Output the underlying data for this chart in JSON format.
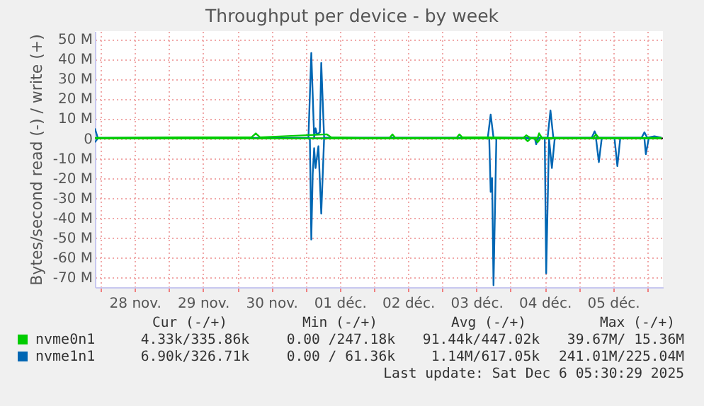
{
  "chart_data": {
    "type": "line",
    "title": "Throughput per device - by week",
    "ylabel": "Bytes/second read (-) / write (+)",
    "xlim": [
      "2025-11-27T22:00",
      "2025-12-06T05:30"
    ],
    "xticks": [
      {
        "value": "2025-11-28T00:00",
        "label": null
      },
      {
        "value": "2025-11-28T12:00",
        "label": "28 nov."
      },
      {
        "value": "2025-11-29T00:00",
        "label": null
      },
      {
        "value": "2025-11-29T12:00",
        "label": "29 nov."
      },
      {
        "value": "2025-11-30T00:00",
        "label": null
      },
      {
        "value": "2025-11-30T12:00",
        "label": "30 nov."
      },
      {
        "value": "2025-12-01T00:00",
        "label": null
      },
      {
        "value": "2025-12-01T12:00",
        "label": "01 déc."
      },
      {
        "value": "2025-12-02T00:00",
        "label": null
      },
      {
        "value": "2025-12-02T12:00",
        "label": "02 déc."
      },
      {
        "value": "2025-12-03T00:00",
        "label": null
      },
      {
        "value": "2025-12-03T12:00",
        "label": "03 déc."
      },
      {
        "value": "2025-12-04T00:00",
        "label": null
      },
      {
        "value": "2025-12-04T12:00",
        "label": "04 déc."
      },
      {
        "value": "2025-12-05T00:00",
        "label": null
      },
      {
        "value": "2025-12-05T12:00",
        "label": "05 déc."
      },
      {
        "value": "2025-12-06T00:00",
        "label": null
      }
    ],
    "ylim": [
      -75,
      54
    ],
    "yticks": [
      {
        "value": 50,
        "label": "50 M"
      },
      {
        "value": 40,
        "label": "40 M"
      },
      {
        "value": 30,
        "label": "30 M"
      },
      {
        "value": 20,
        "label": "20 M"
      },
      {
        "value": 10,
        "label": "10 M"
      },
      0,
      {
        "value": -10,
        "label": "-10 M"
      },
      {
        "value": -20,
        "label": "-20 M"
      },
      {
        "value": -30,
        "label": "-30 M"
      },
      {
        "value": -40,
        "label": "-40 M"
      },
      {
        "value": -50,
        "label": "-50 M"
      },
      {
        "value": -60,
        "label": "-60 M"
      },
      {
        "value": -70,
        "label": "-70 M"
      }
    ],
    "grid": true,
    "legend": "bottom left",
    "ref_lines": [
      {
        "axis": "y",
        "value": 0,
        "color": "#000000"
      }
    ],
    "series": [
      {
        "name": "nvme0n1",
        "color": "#00cc00",
        "x": [
          "2025-11-27T22:00",
          "2025-11-29T12:00",
          "2025-11-30T05:00",
          "2025-11-30T06:30",
          "2025-11-30T08:00",
          "2025-12-01T07:30",
          "2025-12-01T09:00",
          "2025-12-01T20:00",
          "2025-12-02T05:30",
          "2025-12-02T06:30",
          "2025-12-02T07:30",
          "2025-12-03T05:00",
          "2025-12-03T06:00",
          "2025-12-03T07:00",
          "2025-12-03T15:00",
          "2025-12-04T04:30",
          "2025-12-04T05:30",
          "2025-12-04T07:00",
          "2025-12-04T09:30",
          "2025-12-04T10:00",
          "2025-12-04T11:00",
          "2025-12-05T05:00",
          "2025-12-05T06:00",
          "2025-12-05T07:00",
          "2025-12-06T05:00"
        ],
        "values": [
          0.2,
          0.5,
          0.5,
          2.5,
          0.5,
          2,
          0.5,
          0.2,
          0.2,
          2,
          0.2,
          0.2,
          2,
          0.5,
          0.5,
          0.2,
          1.5,
          0.2,
          0.2,
          2.5,
          0.2,
          0.2,
          2,
          0.2,
          0.2
        ]
      },
      {
        "color": "#00cc00",
        "x": [
          "2025-11-27T22:00",
          "2025-12-04T05:00",
          "2025-12-04T06:00",
          "2025-12-04T07:00",
          "2025-12-04T08:30",
          "2025-12-04T09:30",
          "2025-12-04T10:30",
          "2025-12-06T05:00"
        ],
        "values": [
          -0.1,
          -0.1,
          -1.5,
          -0.1,
          -0.1,
          -2,
          -0.1,
          -0.1
        ]
      },
      {
        "name": "nvme1n1",
        "color": "#0066b3",
        "x": [
          "2025-11-27T22:00",
          "2025-11-27T23:00",
          "2025-12-01T01:00",
          "2025-12-01T02:00",
          "2025-12-01T03:00",
          "2025-12-01T03:30",
          "2025-12-01T04:00",
          "2025-12-01T05:00",
          "2025-12-01T05:30",
          "2025-12-01T06:30",
          "2025-12-03T16:00",
          "2025-12-03T17:00",
          "2025-12-03T18:00",
          "2025-12-04T13:00",
          "2025-12-04T14:00",
          "2025-12-04T15:00",
          "2025-12-05T04:30",
          "2025-12-05T05:30",
          "2025-12-05T06:30",
          "2025-12-05T22:00",
          "2025-12-05T23:00",
          "2025-12-06T00:00",
          "2025-12-06T02:30",
          "2025-12-06T05:00"
        ],
        "values": [
          5,
          0.2,
          0.2,
          43,
          0.5,
          5,
          2,
          3,
          38,
          0.3,
          0.3,
          12,
          0.3,
          0.3,
          14,
          0.3,
          0.3,
          3.5,
          0.3,
          0.3,
          3,
          0.3,
          1,
          0.3
        ]
      },
      {
        "color": "#0066b3",
        "x": [
          "2025-11-27T22:00",
          "2025-11-27T23:00",
          "2025-12-01T01:30",
          "2025-12-01T02:00",
          "2025-12-01T02:30",
          "2025-12-01T03:00",
          "2025-12-01T03:30",
          "2025-12-01T04:30",
          "2025-12-01T05:30",
          "2025-12-01T06:30",
          "2025-12-03T16:30",
          "2025-12-03T17:00",
          "2025-12-03T17:30",
          "2025-12-03T18:00",
          "2025-12-03T19:00",
          "2025-12-04T08:30",
          "2025-12-04T09:00",
          "2025-12-04T09:30",
          "2025-12-04T12:00",
          "2025-12-04T12:30",
          "2025-12-04T13:30",
          "2025-12-04T14:30",
          "2025-12-04T15:30",
          "2025-12-05T06:00",
          "2025-12-05T07:00",
          "2025-12-05T08:00",
          "2025-12-05T12:30",
          "2025-12-05T13:30",
          "2025-12-05T14:30",
          "2025-12-05T23:00",
          "2025-12-05T23:30",
          "2025-12-06T00:30",
          "2025-12-06T05:00"
        ],
        "values": [
          -2,
          -0.1,
          -0.1,
          -51,
          -18,
          -5,
          -15,
          -4,
          -38,
          -0.1,
          -0.1,
          -27,
          -20,
          -74,
          -0.1,
          -0.1,
          -3,
          -0.1,
          -0.1,
          -68,
          -0.1,
          -15,
          -0.1,
          -0.1,
          -12,
          -0.1,
          -0.1,
          -14,
          -0.1,
          -0.1,
          -8,
          -0.1,
          -0.1
        ]
      }
    ],
    "annotations": [
      "Cur (-/+)",
      "Min (-/+)",
      "Avg (-/+)",
      "Max (-/+)",
      "4.33k/335.86k",
      "0.00 /247.18k",
      "91.44k/447.02k",
      "39.67M/ 15.36M",
      "6.90k/326.71k",
      "0.00 / 61.36k",
      "1.14M/617.05k",
      "241.01M/225.04M",
      "Last update: Sat Dec  6 05:30:29 2025"
    ]
  }
}
